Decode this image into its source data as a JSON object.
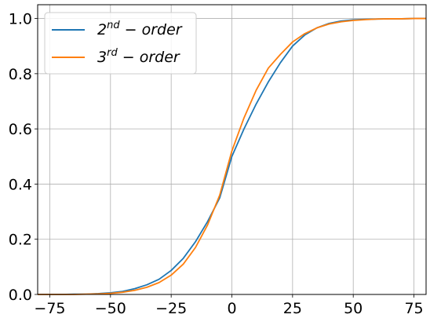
{
  "chart_data": {
    "type": "line",
    "title": "",
    "xlabel": "",
    "ylabel": "",
    "xlim": [
      -80,
      80
    ],
    "ylim": [
      0,
      1.05
    ],
    "x_ticks": [
      -75,
      -50,
      -25,
      0,
      25,
      50,
      75
    ],
    "x_tick_labels": [
      "−75",
      "−50",
      "−25",
      "0",
      "25",
      "50",
      "75"
    ],
    "y_ticks": [
      0.0,
      0.2,
      0.4,
      0.6,
      0.8,
      1.0
    ],
    "y_tick_labels": [
      "0.0",
      "0.2",
      "0.4",
      "0.6",
      "0.8",
      "1.0"
    ],
    "grid": true,
    "legend_position": "top-left",
    "series": [
      {
        "name": "2nd − order",
        "legend": {
          "base": "2",
          "sup": "nd",
          "rest": " − order"
        },
        "color": "#1f77b4",
        "x": [
          -80,
          -75,
          -70,
          -65,
          -60,
          -55,
          -50,
          -45,
          -40,
          -35,
          -30,
          -25,
          -20,
          -15,
          -10,
          -5,
          0,
          5,
          10,
          15,
          20,
          25,
          30,
          35,
          40,
          45,
          50,
          55,
          60,
          65,
          70,
          75,
          80
        ],
        "y": [
          0.0,
          0.0,
          0.0,
          0.001,
          0.001,
          0.003,
          0.006,
          0.011,
          0.021,
          0.035,
          0.055,
          0.087,
          0.131,
          0.191,
          0.264,
          0.35,
          0.5,
          0.6,
          0.69,
          0.77,
          0.84,
          0.9,
          0.94,
          0.966,
          0.982,
          0.991,
          0.995,
          0.997,
          0.998,
          0.999,
          0.999,
          1.0,
          1.0
        ]
      },
      {
        "name": "3rd − order",
        "legend": {
          "base": "3",
          "sup": "rd",
          "rest": " − order"
        },
        "color": "#ff7f0e",
        "x": [
          -80,
          -75,
          -70,
          -65,
          -60,
          -55,
          -50,
          -45,
          -40,
          -35,
          -30,
          -25,
          -20,
          -15,
          -10,
          -5,
          0,
          5,
          10,
          15,
          20,
          25,
          30,
          35,
          40,
          45,
          50,
          55,
          60,
          65,
          70,
          75,
          80
        ],
        "y": [
          0.0,
          0.0,
          0.0,
          0.0,
          0.001,
          0.002,
          0.004,
          0.008,
          0.015,
          0.026,
          0.043,
          0.07,
          0.11,
          0.17,
          0.252,
          0.36,
          0.52,
          0.64,
          0.74,
          0.82,
          0.87,
          0.915,
          0.945,
          0.966,
          0.98,
          0.988,
          0.993,
          0.996,
          0.998,
          0.999,
          0.999,
          1.0,
          1.0
        ]
      }
    ]
  }
}
